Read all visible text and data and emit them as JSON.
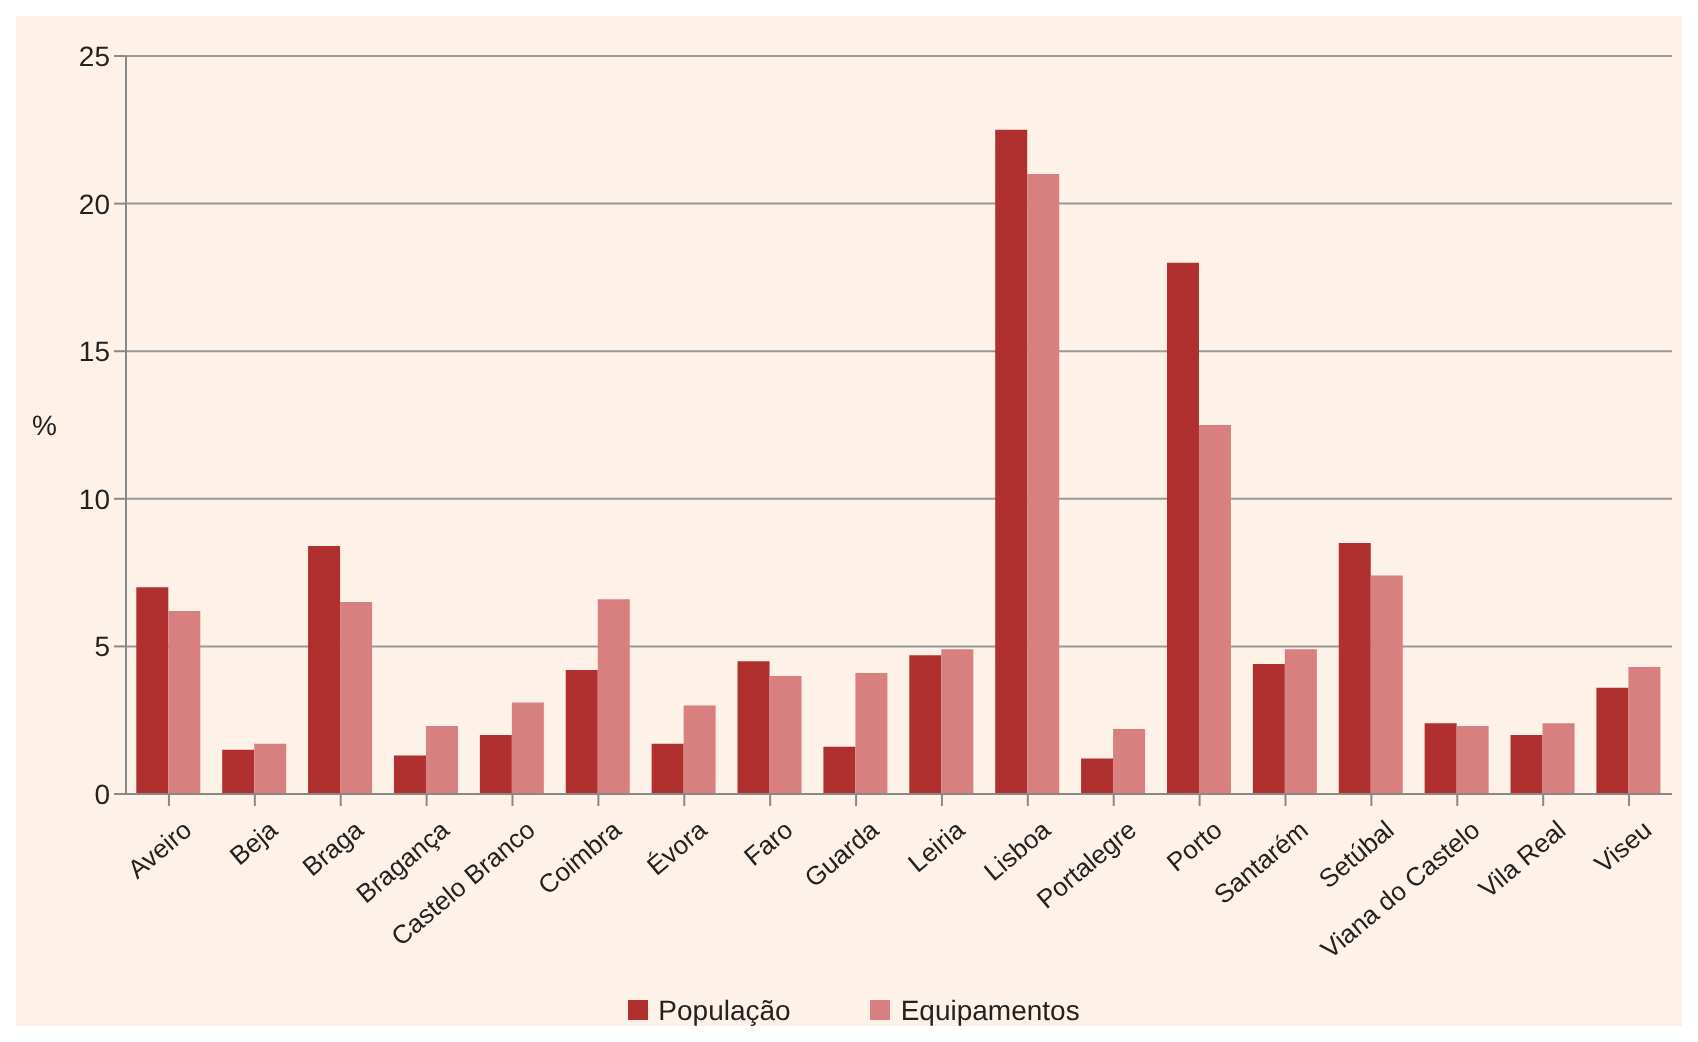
{
  "chart_data": {
    "type": "bar",
    "ylabel": "%",
    "categories": [
      "Aveiro",
      "Beja",
      "Braga",
      "Bragança",
      "Castelo Branco",
      "Coimbra",
      "Évora",
      "Faro",
      "Guarda",
      "Leiria",
      "Lisboa",
      "Portalegre",
      "Porto",
      "Santarém",
      "Setúbal",
      "Viana do Castelo",
      "Vila Real",
      "Viseu"
    ],
    "series": [
      {
        "name": "População",
        "color": "#b03030",
        "values": [
          7.0,
          1.5,
          8.4,
          1.3,
          2.0,
          4.2,
          1.7,
          4.5,
          1.6,
          4.7,
          22.5,
          1.2,
          18.0,
          4.4,
          8.5,
          2.4,
          2.0,
          3.6
        ]
      },
      {
        "name": "Equipamentos",
        "color": "#d88080",
        "values": [
          6.2,
          1.7,
          6.5,
          2.3,
          3.1,
          6.6,
          3.0,
          4.0,
          4.1,
          4.9,
          21.0,
          2.2,
          12.5,
          4.9,
          7.4,
          2.3,
          2.4,
          4.3
        ]
      }
    ],
    "ylim": [
      0,
      25
    ],
    "yticks": [
      0,
      5,
      10,
      15,
      20,
      25
    ],
    "grid": "y",
    "legend": "bottom"
  }
}
